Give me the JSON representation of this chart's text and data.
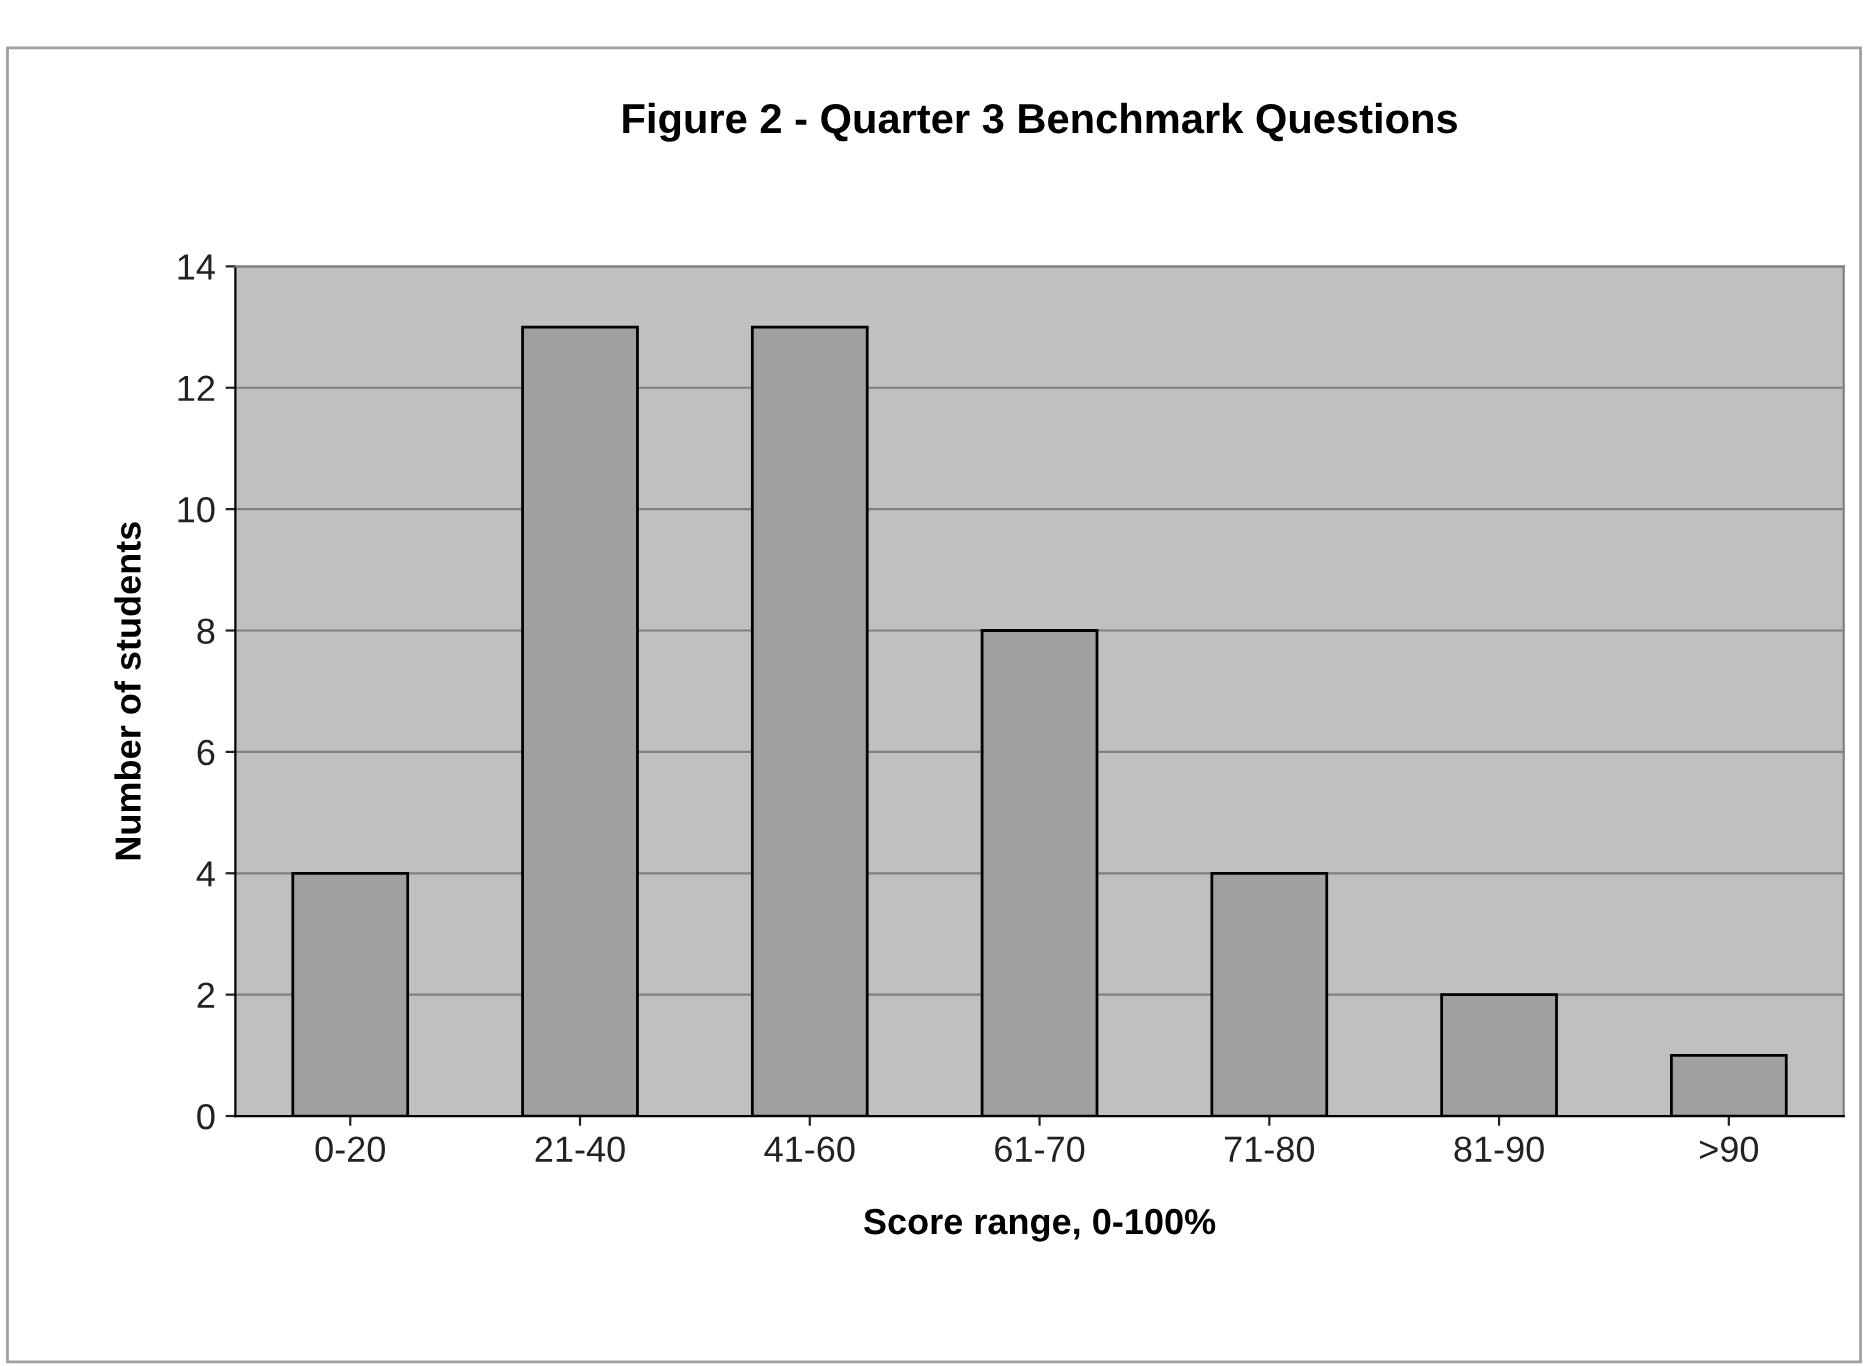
{
  "chart_data": {
    "type": "bar",
    "title": "Figure 2 - Quarter 3 Benchmark Questions",
    "xlabel": "Score range, 0-100%",
    "ylabel": "Number of students",
    "categories": [
      "0-20",
      "21-40",
      "41-60",
      "61-70",
      "71-80",
      "81-90",
      ">90"
    ],
    "values": [
      4,
      13,
      13,
      8,
      4,
      2,
      1
    ],
    "color": "#a0a0a0",
    "ylim": [
      0,
      14
    ],
    "yticks": [
      0,
      2,
      4,
      6,
      8,
      10,
      12,
      14
    ],
    "grid": "y"
  }
}
